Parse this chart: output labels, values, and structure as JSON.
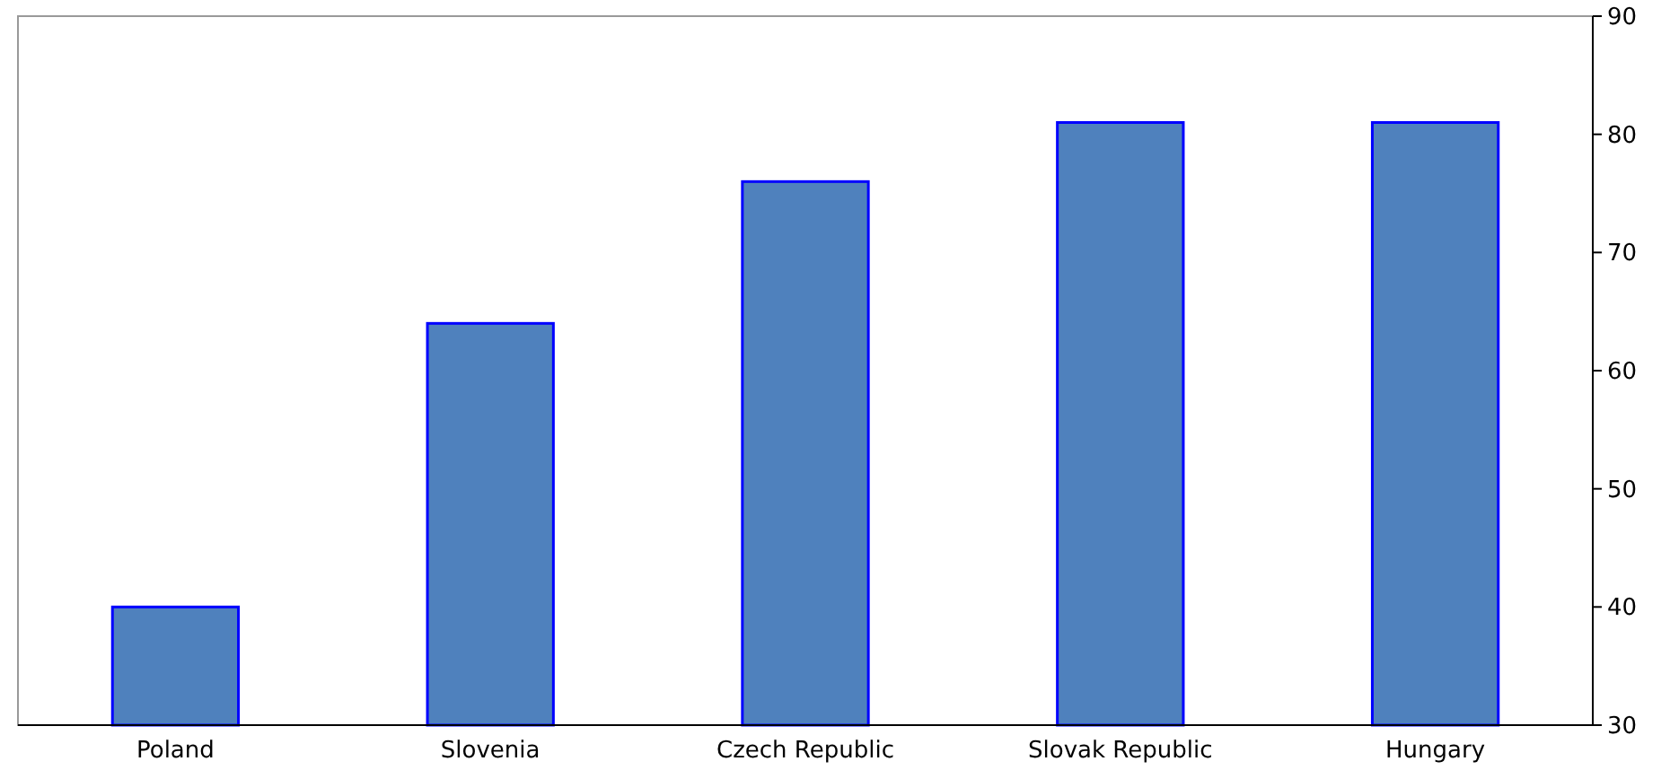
{
  "chart_data": {
    "type": "bar",
    "categories": [
      "Poland",
      "Slovenia",
      "Czech Republic",
      "Slovak Republic",
      "Hungary"
    ],
    "values": [
      40,
      64,
      76,
      81,
      81
    ],
    "color": "#4f81bd",
    "ylim": [
      30,
      90
    ],
    "yticks": [
      30,
      40,
      50,
      60,
      70,
      80,
      90
    ],
    "grid": false
  }
}
